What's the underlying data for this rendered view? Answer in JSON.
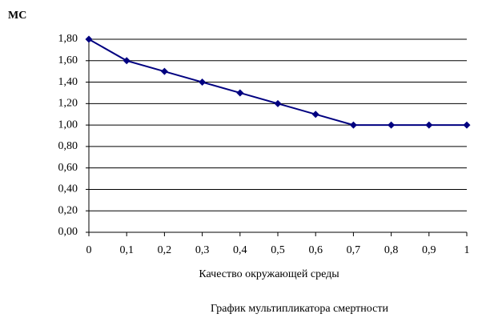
{
  "chart_data": {
    "type": "line",
    "y_label": "МС",
    "x_label": "Качество окружающей среды",
    "caption": "График мультипликатора смертности",
    "x": [
      0,
      0.1,
      0.2,
      0.3,
      0.4,
      0.5,
      0.6,
      0.7,
      0.8,
      0.9,
      1
    ],
    "series": [
      {
        "color": "#000080",
        "values": [
          1.8,
          1.6,
          1.5,
          1.4,
          1.3,
          1.2,
          1.1,
          1.0,
          1.0,
          1.0,
          1.0
        ]
      }
    ],
    "xlim": [
      0,
      1
    ],
    "xticks": [
      0,
      {
        "value": 0.1,
        "label": "0,1"
      },
      {
        "value": 0.2,
        "label": "0,2"
      },
      {
        "value": 0.3,
        "label": "0,3"
      },
      {
        "value": 0.4,
        "label": "0,4"
      },
      {
        "value": 0.5,
        "label": "0,5"
      },
      {
        "value": 0.6,
        "label": "0,6"
      },
      {
        "value": 0.7,
        "label": "0,7"
      },
      {
        "value": 0.8,
        "label": "0,8"
      },
      {
        "value": 0.9,
        "label": "0,9"
      },
      1
    ],
    "ylim": [
      0,
      1.8
    ],
    "yticks": [
      {
        "value": 0,
        "label": "0,00"
      },
      {
        "value": 0.2,
        "label": "0,20"
      },
      {
        "value": 0.4,
        "label": "0,40"
      },
      {
        "value": 0.6,
        "label": "0,60"
      },
      {
        "value": 0.8,
        "label": "0,80"
      },
      {
        "value": 1.0,
        "label": "1,00"
      },
      {
        "value": 1.2,
        "label": "1,20"
      },
      {
        "value": 1.4,
        "label": "1,40"
      },
      {
        "value": 1.6,
        "label": "1,60"
      },
      {
        "value": 1.8,
        "label": "1,80"
      }
    ],
    "grid": true
  }
}
